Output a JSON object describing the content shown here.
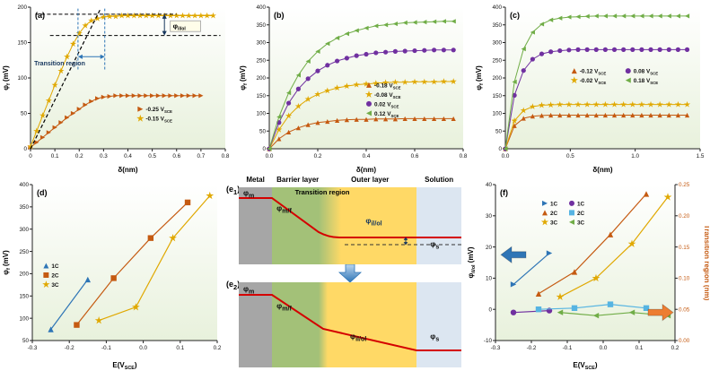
{
  "chart_data": [
    {
      "id": "a",
      "letter": "(a)",
      "type": "line",
      "xlabel": "δ(nm)",
      "ylabel": "φ_{f} (mV)",
      "xlim": [
        0,
        0.8
      ],
      "ylim": [
        0,
        200
      ],
      "xticks": [
        0,
        0.1,
        0.2,
        0.3,
        0.4,
        0.5,
        0.6,
        0.7,
        0.8
      ],
      "xticklabels": [
        "0",
        "0.1",
        "0.2",
        "0.3",
        "0.4",
        "0.5",
        "0.6",
        "0.7",
        "0.8"
      ],
      "yticks": [
        0,
        50,
        100,
        150,
        200
      ],
      "yticklabels": [
        "0",
        "50",
        "100",
        "150",
        "200"
      ],
      "series": [
        {
          "name": "-0.25 V_{SCE}",
          "color": "#C55A11",
          "marker": "triangle-right",
          "x": [
            0,
            0.025,
            0.05,
            0.075,
            0.1,
            0.125,
            0.15,
            0.175,
            0.2,
            0.225,
            0.25,
            0.275,
            0.3,
            0.325,
            0.35,
            0.375,
            0.4,
            0.425,
            0.45,
            0.475,
            0.5,
            0.525,
            0.55,
            0.575,
            0.6,
            0.625,
            0.65,
            0.675,
            0.7
          ],
          "y": [
            2,
            9,
            16,
            23,
            30,
            37,
            44,
            50,
            56,
            62,
            67,
            71,
            73,
            74,
            75,
            75,
            75,
            75,
            75,
            75,
            75,
            75,
            75,
            75,
            75,
            75,
            75,
            75,
            75
          ]
        },
        {
          "name": "-0.15 V_{SCE}",
          "color": "#E0A800",
          "marker": "star",
          "x": [
            0,
            0.025,
            0.05,
            0.075,
            0.1,
            0.125,
            0.15,
            0.175,
            0.2,
            0.225,
            0.25,
            0.275,
            0.3,
            0.325,
            0.35,
            0.375,
            0.4,
            0.425,
            0.45,
            0.475,
            0.5,
            0.525,
            0.55,
            0.575,
            0.6,
            0.625,
            0.65,
            0.675,
            0.7,
            0.725,
            0.75
          ],
          "y": [
            3,
            25,
            47,
            68,
            90,
            110,
            130,
            148,
            163,
            174,
            181,
            184,
            186,
            187,
            187,
            188,
            188,
            188,
            188,
            188,
            188,
            188,
            188,
            188,
            188,
            188,
            188,
            188,
            188,
            188,
            188
          ]
        }
      ],
      "annotations": [
        {
          "type": "line",
          "x1": 0,
          "y1": 0,
          "x2": 0.285,
          "y2": 196,
          "color": "#000000",
          "dash": "4,2.5",
          "w": 1.2
        },
        {
          "type": "line",
          "x1": 0.02,
          "y1": 190,
          "x2": 0.6,
          "y2": 190,
          "color": "#000000",
          "dash": "4,2.5",
          "w": 1
        },
        {
          "type": "line",
          "x1": 0.08,
          "y1": 160,
          "x2": 0.78,
          "y2": 160,
          "color": "#000000",
          "dash": "4,2.5",
          "w": 1
        },
        {
          "type": "line",
          "x1": 0.195,
          "y1": 112,
          "x2": 0.195,
          "y2": 198,
          "color": "#2E75B6",
          "dash": "3,2",
          "w": 1
        },
        {
          "type": "line",
          "x1": 0.305,
          "y1": 112,
          "x2": 0.305,
          "y2": 198,
          "color": "#2E75B6",
          "dash": "3,2",
          "w": 1
        },
        {
          "type": "harrow",
          "y": 130,
          "x1": 0.195,
          "x2": 0.305,
          "color": "#2E75B6"
        },
        {
          "type": "text",
          "x": 0.015,
          "y": 118,
          "text": "Transition region",
          "color": "#17375E",
          "size": 7,
          "bold": true,
          "anchor": "start"
        },
        {
          "type": "varrow",
          "x": 0.55,
          "y1": 160,
          "y2": 190,
          "color": "#17375E"
        },
        {
          "type": "text",
          "x": 0.585,
          "y": 170,
          "text": "φ_{il/ol}",
          "color": "#000000",
          "size": 7.5,
          "bold": true,
          "anchor": "start",
          "box": true
        }
      ]
    },
    {
      "id": "b",
      "letter": "(b)",
      "type": "line",
      "xlabel": "δ(nm)",
      "ylabel": "φ_{f} (mV)",
      "xlim": [
        0,
        0.8
      ],
      "ylim": [
        0,
        400
      ],
      "xticks": [
        0,
        0.2,
        0.4,
        0.6,
        0.8
      ],
      "xticklabels": [
        "0.0",
        "0.2",
        "0.4",
        "0.6",
        "0.8"
      ],
      "yticks": [
        0,
        50,
        100,
        150,
        200,
        250,
        300,
        350,
        400
      ],
      "yticklabels": [
        "0",
        "50",
        "100",
        "150",
        "200",
        "250",
        "300",
        "350",
        "400"
      ],
      "series": [
        {
          "name": "-0.18 V_{SCE}",
          "color": "#C55A11",
          "marker": "triangle-up",
          "x": [
            0,
            0.04,
            0.08,
            0.12,
            0.16,
            0.2,
            0.24,
            0.28,
            0.32,
            0.36,
            0.4,
            0.44,
            0.48,
            0.52,
            0.56,
            0.6,
            0.64,
            0.68,
            0.72,
            0.76
          ],
          "y": [
            0,
            28,
            47,
            59,
            68,
            74,
            77,
            80,
            82,
            83,
            83,
            84,
            84,
            84,
            85,
            85,
            85,
            85,
            85,
            85
          ]
        },
        {
          "name": "-0.08 V_{SCE}",
          "color": "#E0A800",
          "marker": "star",
          "x": [
            0,
            0.04,
            0.08,
            0.12,
            0.16,
            0.2,
            0.24,
            0.28,
            0.32,
            0.36,
            0.4,
            0.44,
            0.48,
            0.52,
            0.56,
            0.6,
            0.64,
            0.68,
            0.72,
            0.76
          ],
          "y": [
            0,
            54,
            93,
            120,
            140,
            154,
            164,
            172,
            177,
            181,
            183,
            185,
            187,
            188,
            188,
            189,
            189,
            189,
            190,
            190
          ]
        },
        {
          "name": "0.02 V_{SCE}",
          "color": "#7030A0",
          "marker": "circle",
          "x": [
            0,
            0.04,
            0.08,
            0.12,
            0.16,
            0.2,
            0.24,
            0.28,
            0.32,
            0.36,
            0.4,
            0.44,
            0.48,
            0.52,
            0.56,
            0.6,
            0.64,
            0.68,
            0.72,
            0.76
          ],
          "y": [
            0,
            74,
            129,
            169,
            198,
            220,
            236,
            248,
            256,
            263,
            267,
            271,
            273,
            275,
            276,
            277,
            278,
            279,
            279,
            279
          ]
        },
        {
          "name": "0.12 V_{SCE}",
          "color": "#70AD47",
          "marker": "triangle-left",
          "x": [
            0,
            0.04,
            0.08,
            0.12,
            0.16,
            0.2,
            0.24,
            0.28,
            0.32,
            0.36,
            0.4,
            0.44,
            0.48,
            0.52,
            0.56,
            0.6,
            0.64,
            0.68,
            0.72,
            0.76
          ],
          "y": [
            0,
            90,
            158,
            208,
            247,
            275,
            297,
            313,
            325,
            334,
            341,
            347,
            350,
            353,
            356,
            357,
            358,
            359,
            360,
            360
          ]
        }
      ]
    },
    {
      "id": "c",
      "letter": "(c)",
      "type": "line",
      "xlabel": "δ(nm)",
      "ylabel": "φ_{f} (mV)",
      "xlim": [
        0,
        1.5
      ],
      "ylim": [
        0,
        400
      ],
      "xticks": [
        0,
        0.5,
        1,
        1.5
      ],
      "xticklabels": [
        "0.0",
        "0.5",
        "1.0",
        "1.5"
      ],
      "yticks": [
        0,
        50,
        100,
        150,
        200,
        250,
        300,
        350,
        400
      ],
      "yticklabels": [
        "0",
        "50",
        "100",
        "150",
        "200",
        "250",
        "300",
        "350",
        "400"
      ],
      "series": [
        {
          "name": "-0.12 V_{SCE}",
          "color": "#C55A11",
          "marker": "triangle-up",
          "x": [
            0,
            0.07,
            0.14,
            0.21,
            0.28,
            0.35,
            0.42,
            0.49,
            0.56,
            0.63,
            0.7,
            0.77,
            0.84,
            0.91,
            0.98,
            1.05,
            1.12,
            1.19,
            1.26,
            1.33,
            1.4
          ],
          "y": [
            0,
            65,
            86,
            92,
            94,
            95,
            95,
            95,
            95,
            95,
            95,
            95,
            95,
            95,
            95,
            95,
            95,
            95,
            95,
            95,
            95
          ]
        },
        {
          "name": "-0.02 V_{SCE}",
          "color": "#E0A800",
          "marker": "star",
          "x": [
            0,
            0.07,
            0.14,
            0.21,
            0.28,
            0.35,
            0.42,
            0.49,
            0.56,
            0.63,
            0.7,
            0.77,
            0.84,
            0.91,
            0.98,
            1.05,
            1.12,
            1.19,
            1.26,
            1.33,
            1.4
          ],
          "y": [
            0,
            79,
            108,
            119,
            123,
            124,
            125,
            125,
            125,
            125,
            125,
            125,
            125,
            125,
            125,
            125,
            125,
            125,
            125,
            125,
            125
          ]
        },
        {
          "name": "0.08 V_{SCE}",
          "color": "#7030A0",
          "marker": "circle",
          "x": [
            0,
            0.07,
            0.14,
            0.21,
            0.28,
            0.35,
            0.42,
            0.49,
            0.56,
            0.63,
            0.7,
            0.77,
            0.84,
            0.91,
            0.98,
            1.05,
            1.12,
            1.19,
            1.26,
            1.33,
            1.4
          ],
          "y": [
            0,
            151,
            221,
            253,
            268,
            274,
            277,
            279,
            280,
            280,
            280,
            280,
            280,
            280,
            280,
            280,
            280,
            280,
            280,
            280,
            280
          ]
        },
        {
          "name": "0.18 V_{SCE}",
          "color": "#70AD47",
          "marker": "triangle-left",
          "x": [
            0,
            0.07,
            0.14,
            0.21,
            0.28,
            0.35,
            0.42,
            0.49,
            0.56,
            0.63,
            0.7,
            0.77,
            0.84,
            0.91,
            0.98,
            1.05,
            1.12,
            1.19,
            1.26,
            1.33,
            1.4
          ],
          "y": [
            0,
            189,
            282,
            329,
            352,
            364,
            369,
            372,
            373,
            374,
            375,
            375,
            375,
            375,
            375,
            375,
            375,
            375,
            375,
            375,
            375
          ]
        }
      ]
    },
    {
      "id": "d",
      "letter": "(d)",
      "type": "line",
      "xlabel": "E(V_{SCE})",
      "ylabel": "φ_{f} (mV)",
      "xlim": [
        -0.3,
        0.2
      ],
      "ylim": [
        50,
        400
      ],
      "xticks": [
        -0.3,
        -0.2,
        -0.1,
        0,
        0.1,
        0.2
      ],
      "xticklabels": [
        "-0.3",
        "-0.2",
        "-0.1",
        "0.0",
        "0.1",
        "0.2"
      ],
      "yticks": [
        50,
        100,
        150,
        200,
        250,
        300,
        350,
        400
      ],
      "yticklabels": [
        "50",
        "100",
        "150",
        "200",
        "250",
        "300",
        "350",
        "400"
      ],
      "series": [
        {
          "name": "1C",
          "color": "#2E75B6",
          "marker": "triangle-up",
          "x": [
            -0.25,
            -0.15
          ],
          "y": [
            75,
            187
          ]
        },
        {
          "name": "2C",
          "color": "#C55A11",
          "marker": "square",
          "x": [
            -0.18,
            -0.08,
            0.02,
            0.12
          ],
          "y": [
            85,
            190,
            280,
            360
          ]
        },
        {
          "name": "3C",
          "color": "#E0A800",
          "marker": "star",
          "x": [
            -0.12,
            -0.02,
            0.08,
            0.18
          ],
          "y": [
            95,
            125,
            280,
            375
          ]
        }
      ]
    },
    {
      "id": "f",
      "letter": "(f)",
      "type": "line",
      "xlabel": "E(V_{SCE})",
      "ylabel": "φ_{il/ol} (mV)",
      "y2label": "Transition region (nm)",
      "y2color": "#C55A11",
      "xlim": [
        -0.3,
        0.2
      ],
      "ylim": [
        -10,
        40
      ],
      "ylim2": [
        0,
        0.25
      ],
      "xticks": [
        -0.3,
        -0.2,
        -0.1,
        0,
        0.1,
        0.2
      ],
      "xticklabels": [
        "-0.3",
        "-0.2",
        "-0.1",
        "0.0",
        "0.1",
        "0.2"
      ],
      "yticks": [
        -10,
        0,
        10,
        20,
        30,
        40
      ],
      "yticklabels": [
        "-10",
        "0",
        "10",
        "20",
        "30",
        "40"
      ],
      "y2ticks": [
        0,
        0.05,
        0.1,
        0.15,
        0.2,
        0.25
      ],
      "y2ticklabels": [
        "0.00",
        "0.05",
        "0.10",
        "0.15",
        "0.20",
        "0.25"
      ],
      "series": [
        {
          "name": "1C",
          "color": "#2E75B6",
          "marker": "triangle-right",
          "x": [
            -0.25,
            -0.15
          ],
          "y": [
            8,
            18
          ]
        },
        {
          "name": "2C",
          "color": "#C55A11",
          "marker": "triangle-up",
          "x": [
            -0.18,
            -0.08,
            0.02,
            0.12
          ],
          "y": [
            5,
            12,
            24,
            37
          ]
        },
        {
          "name": "3C",
          "color": "#E0A800",
          "marker": "star",
          "x": [
            -0.12,
            -0.02,
            0.08,
            0.18
          ],
          "y": [
            4,
            10,
            21,
            36
          ]
        },
        {
          "name": "1C",
          "color": "#7030A0",
          "marker": "circle",
          "yaxis": "right",
          "x": [
            -0.25,
            -0.15
          ],
          "y": [
            0.045,
            0.048
          ]
        },
        {
          "name": "2C",
          "color": "#56B4E2",
          "marker": "square",
          "yaxis": "right",
          "x": [
            -0.18,
            -0.08,
            0.02,
            0.12
          ],
          "y": [
            0.05,
            0.052,
            0.058,
            0.052
          ]
        },
        {
          "name": "3C",
          "color": "#70AD47",
          "marker": "triangle-left",
          "yaxis": "right",
          "x": [
            -0.12,
            -0.02,
            0.08,
            0.18
          ],
          "y": [
            0.045,
            0.04,
            0.045,
            0.04
          ]
        }
      ],
      "annotations": [
        {
          "type": "fatarrow",
          "fx": 0.03,
          "fy": 0.45,
          "dir": "left",
          "color": "#2E75B6"
        },
        {
          "type": "fatarrow",
          "fx": 0.99,
          "fy": 0.82,
          "dir": "right",
          "color": "#ED7D31"
        }
      ]
    }
  ],
  "schematic": {
    "letters": {
      "e1": "(e_{1})",
      "e2": "(e_{2})"
    },
    "headers": [
      "Metal",
      "Barrier layer",
      "Outer layer",
      "Solution"
    ],
    "transition_label": "Transition region",
    "labels": {
      "phi_m": "φ_{m}",
      "phi_mf": "φ_{m/f}",
      "phi_ilol": "φ_{il/ol}",
      "phi_s": "φ_{s}"
    },
    "colors": {
      "metal": "#A6A6A6",
      "barrier": "#A3C178",
      "outer": "#FFD966",
      "solution": "#DCE6F1",
      "line": "#D40000",
      "arrow": "#5B9BD5"
    }
  }
}
